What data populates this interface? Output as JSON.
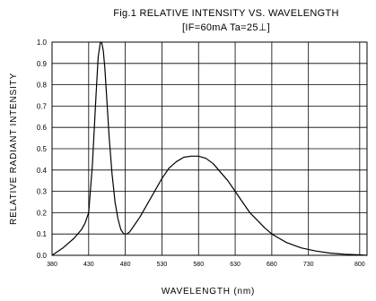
{
  "chart_data": {
    "type": "line",
    "title": "Fig.1 RELATIVE INTENSITY VS. WAVELENGTH",
    "subtitle": "[IF=60mA Ta=25⊥]",
    "xlabel": "WAVELENGTH   (nm)",
    "ylabel": "RELATIVE RADIANT INTENSITY",
    "xlim": [
      380,
      810
    ],
    "ylim": [
      0,
      1.0
    ],
    "grid": true,
    "x_ticks": [
      "380",
      "430",
      "480",
      "530",
      "580",
      "630",
      "680",
      "730",
      "800"
    ],
    "y_ticks": [
      "0.0",
      "0.1",
      "0.2",
      "0.3",
      "0.4",
      "0.5",
      "0.6",
      "0.7",
      "0.8",
      "0.9",
      "1.0"
    ],
    "series": [
      {
        "x": [
          380,
          395,
          410,
          420,
          425,
          430,
          435,
          440,
          443,
          446,
          448,
          450,
          452,
          455,
          458,
          462,
          466,
          470,
          474,
          478,
          482,
          486,
          490,
          500,
          510,
          520,
          530,
          540,
          550,
          560,
          570,
          580,
          590,
          600,
          610,
          620,
          630,
          640,
          650,
          660,
          670,
          680,
          690,
          700,
          720,
          740,
          760,
          780,
          800,
          810
        ],
        "y": [
          0.0,
          0.035,
          0.08,
          0.12,
          0.15,
          0.2,
          0.42,
          0.75,
          0.93,
          1.0,
          0.995,
          0.96,
          0.88,
          0.72,
          0.55,
          0.38,
          0.25,
          0.17,
          0.12,
          0.1,
          0.1,
          0.11,
          0.13,
          0.18,
          0.24,
          0.3,
          0.36,
          0.41,
          0.44,
          0.46,
          0.465,
          0.465,
          0.455,
          0.43,
          0.39,
          0.35,
          0.3,
          0.25,
          0.2,
          0.165,
          0.13,
          0.1,
          0.08,
          0.06,
          0.035,
          0.02,
          0.01,
          0.005,
          0.002,
          0.0
        ]
      }
    ]
  }
}
